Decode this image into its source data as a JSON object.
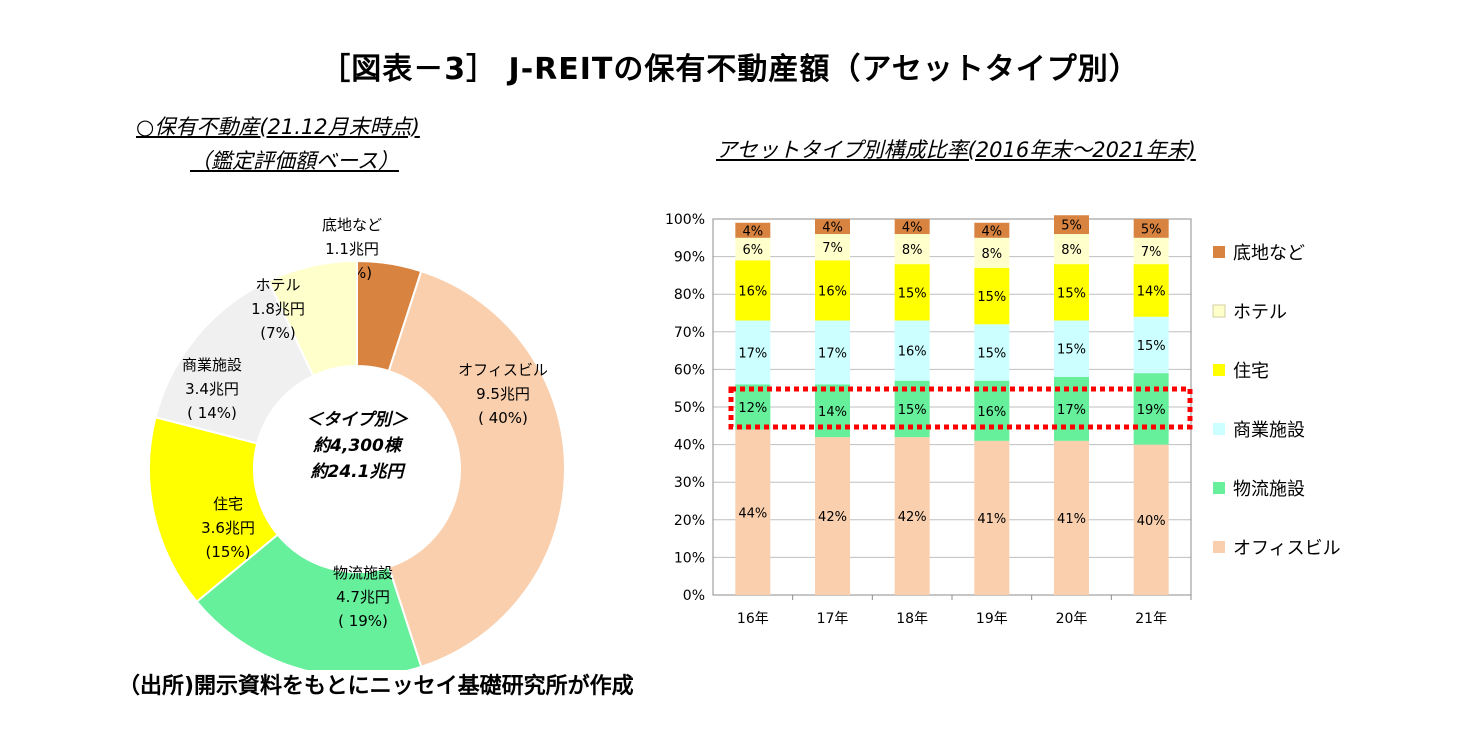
{
  "figure_title": "［図表－3］ J-REITの保有不動産額（アセットタイプ別）",
  "donut_subtitle_line1": "○保有不動産(21.12月末時点)",
  "donut_subtitle_line2": "（鑑定評価額ベース）",
  "bar_subtitle": "アセットタイプ別構成比率(2016年末～2021年末)",
  "source": "（出所)開示資料をもとにニッセイ基礎研究所が作成",
  "colors": {
    "office": "#f9cfad",
    "logistics": "#66f09b",
    "retail": "#ccffff",
    "residential": "#ffff00",
    "hotel": "#ffffcc",
    "land": "#d8833f",
    "donut_retail": "#f0f0f0",
    "highlight": "#ff0000"
  },
  "chart_data": [
    {
      "type": "pie",
      "style": "donut",
      "center_label": [
        "＜タイプ別＞",
        "約4,300棟",
        "約24.1兆円"
      ],
      "slices": [
        {
          "key": "land",
          "name": "底地など",
          "value_label": "1.1兆円",
          "pct_label": "( 5%)",
          "pct": 5
        },
        {
          "key": "office",
          "name": "オフィスビル",
          "value_label": "9.5兆円",
          "pct_label": "( 40%)",
          "pct": 40
        },
        {
          "key": "logistics",
          "name": "物流施設",
          "value_label": "4.7兆円",
          "pct_label": "( 19%)",
          "pct": 19
        },
        {
          "key": "residential",
          "name": "住宅",
          "value_label": "3.6兆円",
          "pct_label": "(15%)",
          "pct": 15
        },
        {
          "key": "retail",
          "name": "商業施設",
          "value_label": "3.4兆円",
          "pct_label": "( 14%)",
          "pct": 14
        },
        {
          "key": "hotel",
          "name": "ホテル",
          "value_label": "1.8兆円",
          "pct_label": "(7%)",
          "pct": 7
        }
      ]
    },
    {
      "type": "bar",
      "stacked": true,
      "categories": [
        "16年",
        "17年",
        "18年",
        "19年",
        "20年",
        "21年"
      ],
      "ylim": [
        0,
        100
      ],
      "yticks": [
        "0%",
        "10%",
        "20%",
        "30%",
        "40%",
        "50%",
        "60%",
        "70%",
        "80%",
        "90%",
        "100%"
      ],
      "series": [
        {
          "key": "office",
          "name": "オフィスビル",
          "values": [
            44,
            42,
            42,
            41,
            41,
            40
          ],
          "labels": [
            "44%",
            "42%",
            "42%",
            "41%",
            "41%",
            "40%"
          ]
        },
        {
          "key": "logistics",
          "name": "物流施設",
          "values": [
            12,
            14,
            15,
            16,
            17,
            19
          ],
          "labels": [
            "12%",
            "14%",
            "15%",
            "16%",
            "17%",
            "19%"
          ]
        },
        {
          "key": "retail",
          "name": "商業施設",
          "values": [
            17,
            17,
            16,
            15,
            15,
            15
          ],
          "labels": [
            "17%",
            "17%",
            "16%",
            "15%",
            "15%",
            "15%"
          ]
        },
        {
          "key": "residential",
          "name": "住宅",
          "values": [
            16,
            16,
            15,
            15,
            15,
            14
          ],
          "labels": [
            "16%",
            "16%",
            "15%",
            "15%",
            "15%",
            "14%"
          ]
        },
        {
          "key": "hotel",
          "name": "ホテル",
          "values": [
            6,
            7,
            8,
            8,
            8,
            7
          ],
          "labels": [
            "6%",
            "7%",
            "8%",
            "8%",
            "8%",
            "7%"
          ]
        },
        {
          "key": "land",
          "name": "底地など",
          "values": [
            4,
            4,
            4,
            4,
            5,
            5
          ],
          "labels": [
            "4%",
            "4%",
            "4%",
            "4%",
            "5%",
            "5%"
          ]
        }
      ],
      "legend_order": [
        "land",
        "hotel",
        "residential",
        "retail",
        "logistics",
        "office"
      ],
      "legend_position": "right",
      "highlighted_series": "logistics"
    }
  ]
}
